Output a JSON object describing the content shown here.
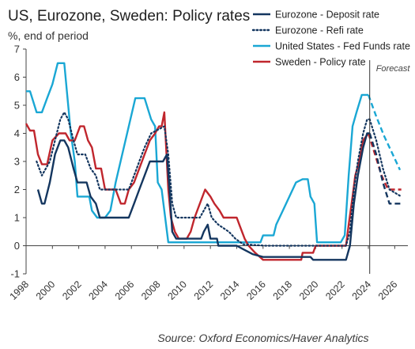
{
  "chart_data": {
    "type": "line",
    "title": "US, Eurozone, Sweden: Policy rates",
    "subtitle": "%, end of period",
    "ylim": [
      -1,
      7
    ],
    "yticks": [
      "-1",
      "0",
      "1",
      "2",
      "3",
      "4",
      "5",
      "6",
      "7"
    ],
    "xlim": [
      1998,
      2027
    ],
    "xticks": [
      "1998",
      "2000",
      "2002",
      "2004",
      "2006",
      "2008",
      "2010",
      "2012",
      "2014",
      "2016",
      "2018",
      "2020",
      "2022",
      "2024",
      "2026"
    ],
    "grid": false,
    "legend_position": "top-right",
    "forecast_start": 2024.1,
    "annotation": "Forecast",
    "source": "Source: Oxford Economics/Haver Analytics",
    "series": [
      {
        "name": "United States - Fed Funds rate",
        "color": "#1aa7d4",
        "style": "solid",
        "points": [
          [
            1998,
            5.5
          ],
          [
            1998.3,
            5.5
          ],
          [
            1998.8,
            4.75
          ],
          [
            1999.2,
            4.75
          ],
          [
            1999.6,
            5.25
          ],
          [
            2000.0,
            5.75
          ],
          [
            2000.4,
            6.5
          ],
          [
            2000.9,
            6.5
          ],
          [
            2001.1,
            5.5
          ],
          [
            2001.4,
            4.0
          ],
          [
            2001.7,
            3.0
          ],
          [
            2001.9,
            1.75
          ],
          [
            2002.3,
            1.75
          ],
          [
            2002.8,
            1.75
          ],
          [
            2003.0,
            1.25
          ],
          [
            2003.4,
            1.0
          ],
          [
            2004.0,
            1.0
          ],
          [
            2004.4,
            1.25
          ],
          [
            2004.8,
            2.25
          ],
          [
            2005.3,
            3.25
          ],
          [
            2005.8,
            4.25
          ],
          [
            2006.3,
            5.25
          ],
          [
            2007.0,
            5.25
          ],
          [
            2007.5,
            4.5
          ],
          [
            2007.8,
            4.25
          ],
          [
            2008.0,
            2.25
          ],
          [
            2008.3,
            2.0
          ],
          [
            2008.8,
            0.12
          ],
          [
            2015.8,
            0.12
          ],
          [
            2016.0,
            0.37
          ],
          [
            2016.8,
            0.37
          ],
          [
            2017.0,
            0.75
          ],
          [
            2017.5,
            1.25
          ],
          [
            2018.0,
            1.75
          ],
          [
            2018.5,
            2.25
          ],
          [
            2019.0,
            2.37
          ],
          [
            2019.4,
            2.37
          ],
          [
            2019.6,
            1.75
          ],
          [
            2019.9,
            1.5
          ],
          [
            2020.1,
            0.12
          ],
          [
            2021.9,
            0.12
          ],
          [
            2022.2,
            0.37
          ],
          [
            2022.5,
            2.5
          ],
          [
            2022.8,
            4.25
          ],
          [
            2023.1,
            4.75
          ],
          [
            2023.5,
            5.37
          ],
          [
            2024.0,
            5.37
          ]
        ]
      },
      {
        "name": "United States - Fed Funds rate (forecast)",
        "color": "#1aa7d4",
        "style": "dashed",
        "points": [
          [
            2024.0,
            5.37
          ],
          [
            2024.6,
            4.6
          ],
          [
            2025.2,
            3.9
          ],
          [
            2025.8,
            3.3
          ],
          [
            2026.4,
            2.7
          ]
        ]
      },
      {
        "name": "Sweden - Policy rate",
        "color": "#c0262d",
        "style": "solid",
        "points": [
          [
            1998,
            4.35
          ],
          [
            1998.3,
            4.1
          ],
          [
            1998.6,
            4.1
          ],
          [
            1998.9,
            3.25
          ],
          [
            1999.2,
            2.9
          ],
          [
            1999.6,
            2.9
          ],
          [
            2000.0,
            3.75
          ],
          [
            2000.5,
            4.0
          ],
          [
            2001.0,
            4.0
          ],
          [
            2001.3,
            3.75
          ],
          [
            2001.7,
            3.75
          ],
          [
            2002.1,
            4.25
          ],
          [
            2002.4,
            4.25
          ],
          [
            2002.7,
            3.75
          ],
          [
            2003.0,
            3.5
          ],
          [
            2003.3,
            2.75
          ],
          [
            2003.7,
            2.75
          ],
          [
            2004.0,
            2.0
          ],
          [
            2004.8,
            2.0
          ],
          [
            2005.2,
            1.5
          ],
          [
            2005.5,
            1.5
          ],
          [
            2005.8,
            2.0
          ],
          [
            2006.2,
            2.25
          ],
          [
            2006.6,
            2.75
          ],
          [
            2007.0,
            3.25
          ],
          [
            2007.4,
            3.75
          ],
          [
            2007.8,
            4.0
          ],
          [
            2008.1,
            4.25
          ],
          [
            2008.3,
            4.25
          ],
          [
            2008.5,
            4.75
          ],
          [
            2008.8,
            2.0
          ],
          [
            2009.0,
            1.0
          ],
          [
            2009.3,
            0.5
          ],
          [
            2009.6,
            0.25
          ],
          [
            2010.2,
            0.25
          ],
          [
            2010.5,
            0.5
          ],
          [
            2010.8,
            1.0
          ],
          [
            2011.2,
            1.5
          ],
          [
            2011.6,
            2.0
          ],
          [
            2012.0,
            1.75
          ],
          [
            2012.3,
            1.5
          ],
          [
            2012.7,
            1.25
          ],
          [
            2013.0,
            1.0
          ],
          [
            2014.0,
            1.0
          ],
          [
            2014.2,
            0.75
          ],
          [
            2014.6,
            0.25
          ],
          [
            2014.9,
            0.0
          ],
          [
            2015.1,
            -0.1
          ],
          [
            2015.4,
            -0.25
          ],
          [
            2016.0,
            -0.5
          ],
          [
            2018.9,
            -0.5
          ],
          [
            2019.0,
            -0.25
          ],
          [
            2019.8,
            -0.25
          ],
          [
            2020.0,
            0.0
          ],
          [
            2022.3,
            0.0
          ],
          [
            2022.5,
            0.75
          ],
          [
            2022.8,
            1.75
          ],
          [
            2023.0,
            2.5
          ],
          [
            2023.3,
            3.0
          ],
          [
            2023.6,
            3.75
          ],
          [
            2024.0,
            4.0
          ]
        ]
      },
      {
        "name": "Sweden - Policy rate (forecast)",
        "color": "#c0262d",
        "style": "dashed",
        "points": [
          [
            2024.0,
            4.0
          ],
          [
            2024.5,
            3.25
          ],
          [
            2025.0,
            2.5
          ],
          [
            2025.5,
            2.0
          ],
          [
            2026.5,
            2.0
          ]
        ]
      },
      {
        "name": "Eurozone - Refi rate",
        "color": "#14365f",
        "style": "dotted",
        "points": [
          [
            1998.8,
            3.0
          ],
          [
            1999.2,
            2.5
          ],
          [
            1999.8,
            3.0
          ],
          [
            2000.2,
            3.75
          ],
          [
            2000.6,
            4.5
          ],
          [
            2000.9,
            4.75
          ],
          [
            2001.2,
            4.5
          ],
          [
            2001.6,
            3.75
          ],
          [
            2001.9,
            3.25
          ],
          [
            2002.5,
            3.25
          ],
          [
            2002.9,
            2.75
          ],
          [
            2003.3,
            2.5
          ],
          [
            2003.6,
            2.0
          ],
          [
            2005.8,
            2.0
          ],
          [
            2006.2,
            2.5
          ],
          [
            2006.6,
            3.0
          ],
          [
            2007.0,
            3.5
          ],
          [
            2007.5,
            4.0
          ],
          [
            2008.5,
            4.25
          ],
          [
            2008.8,
            3.25
          ],
          [
            2009.1,
            1.5
          ],
          [
            2009.4,
            1.0
          ],
          [
            2011.2,
            1.0
          ],
          [
            2011.5,
            1.25
          ],
          [
            2011.8,
            1.5
          ],
          [
            2012.1,
            1.0
          ],
          [
            2012.6,
            0.75
          ],
          [
            2013.4,
            0.5
          ],
          [
            2013.9,
            0.25
          ],
          [
            2014.5,
            0.05
          ],
          [
            2016.2,
            0.0
          ],
          [
            2022.3,
            0.0
          ],
          [
            2022.6,
            0.5
          ],
          [
            2022.9,
            2.0
          ],
          [
            2023.2,
            3.0
          ],
          [
            2023.6,
            4.0
          ],
          [
            2023.9,
            4.5
          ],
          [
            2024.1,
            4.5
          ]
        ]
      },
      {
        "name": "Eurozone - Refi rate (forecast)",
        "color": "#14365f",
        "style": "dotted",
        "points": [
          [
            2024.1,
            4.5
          ],
          [
            2024.6,
            3.75
          ],
          [
            2025.1,
            2.75
          ],
          [
            2025.6,
            2.0
          ],
          [
            2026.5,
            1.75
          ]
        ]
      },
      {
        "name": "Eurozone - Deposit rate",
        "color": "#14365f",
        "style": "solid",
        "points": [
          [
            1998.9,
            2.0
          ],
          [
            1999.2,
            1.5
          ],
          [
            1999.4,
            1.5
          ],
          [
            1999.8,
            2.25
          ],
          [
            2000.2,
            3.25
          ],
          [
            2000.6,
            3.75
          ],
          [
            2000.9,
            3.75
          ],
          [
            2001.2,
            3.5
          ],
          [
            2001.6,
            2.75
          ],
          [
            2001.9,
            2.25
          ],
          [
            2002.6,
            2.25
          ],
          [
            2002.9,
            1.75
          ],
          [
            2003.3,
            1.5
          ],
          [
            2003.6,
            1.0
          ],
          [
            2005.8,
            1.0
          ],
          [
            2006.2,
            1.5
          ],
          [
            2006.6,
            2.0
          ],
          [
            2007.0,
            2.5
          ],
          [
            2007.4,
            3.0
          ],
          [
            2008.4,
            3.0
          ],
          [
            2008.7,
            3.25
          ],
          [
            2008.9,
            2.0
          ],
          [
            2009.1,
            0.5
          ],
          [
            2009.4,
            0.25
          ],
          [
            2011.3,
            0.25
          ],
          [
            2011.5,
            0.5
          ],
          [
            2011.8,
            0.75
          ],
          [
            2012.0,
            0.25
          ],
          [
            2012.5,
            0.25
          ],
          [
            2012.6,
            0.0
          ],
          [
            2014.0,
            0.0
          ],
          [
            2014.4,
            -0.1
          ],
          [
            2014.8,
            -0.2
          ],
          [
            2015.2,
            -0.3
          ],
          [
            2016.0,
            -0.4
          ],
          [
            2019.6,
            -0.4
          ],
          [
            2019.8,
            -0.5
          ],
          [
            2022.3,
            -0.5
          ],
          [
            2022.6,
            0.0
          ],
          [
            2022.9,
            1.5
          ],
          [
            2023.2,
            2.5
          ],
          [
            2023.6,
            3.5
          ],
          [
            2023.9,
            4.0
          ],
          [
            2024.1,
            4.0
          ]
        ]
      },
      {
        "name": "Eurozone - Deposit rate (forecast)",
        "color": "#14365f",
        "style": "dashed",
        "points": [
          [
            2024.1,
            4.0
          ],
          [
            2024.6,
            3.25
          ],
          [
            2025.1,
            2.25
          ],
          [
            2025.6,
            1.5
          ],
          [
            2026.5,
            1.5
          ]
        ]
      }
    ],
    "legend": [
      {
        "label": "Eurozone - Deposit rate",
        "color": "#14365f",
        "style": "solid"
      },
      {
        "label": "Eurozone - Refi rate",
        "color": "#14365f",
        "style": "dotted"
      },
      {
        "label": "United States - Fed Funds rate",
        "color": "#1aa7d4",
        "style": "solid"
      },
      {
        "label": "Sweden - Policy rate",
        "color": "#c0262d",
        "style": "solid"
      }
    ]
  }
}
